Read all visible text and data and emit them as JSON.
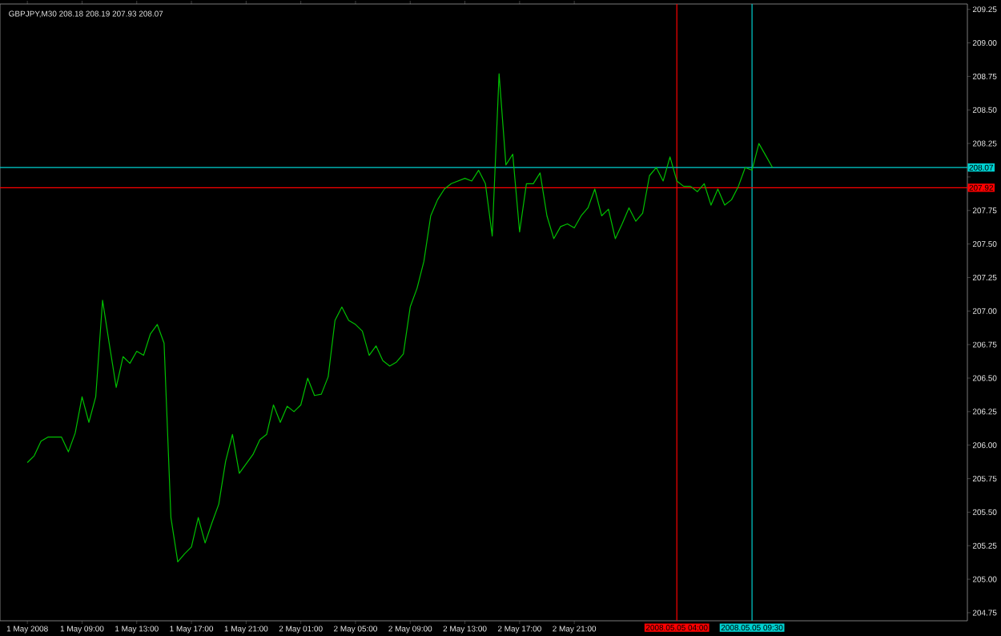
{
  "chart_data": {
    "type": "line",
    "title": "GBPJPY,M30  208.18 208.19 207.93 208.07",
    "color": "#00c000",
    "categories": [
      "1 May 2008",
      null,
      null,
      null,
      null,
      null,
      null,
      null,
      "1 May 09:00",
      null,
      null,
      null,
      null,
      null,
      null,
      null,
      "1 May 13:00",
      null,
      null,
      null,
      null,
      null,
      null,
      null,
      "1 May 17:00",
      null,
      null,
      null,
      null,
      null,
      null,
      null,
      "1 May 21:00",
      null,
      null,
      null,
      null,
      null,
      null,
      null,
      "2 May 01:00",
      null,
      null,
      null,
      null,
      null,
      null,
      null,
      "2 May 05:00",
      null,
      null,
      null,
      null,
      null,
      null,
      null,
      "2 May 09:00",
      null,
      null,
      null,
      null,
      null,
      null,
      null,
      "2 May 13:00",
      null,
      null,
      null,
      null,
      null,
      null,
      null,
      "2 May 17:00",
      null,
      null,
      null,
      null,
      null,
      null,
      null,
      "2 May 21:00",
      null,
      null,
      null,
      null,
      null,
      null,
      null,
      null,
      null,
      null,
      null,
      null,
      null,
      null,
      "2008.05.05 04:00",
      null,
      null,
      null,
      null,
      null,
      null,
      null,
      null,
      null,
      null,
      "2008.05.05 09:30",
      null,
      null,
      null,
      null,
      null,
      null,
      null,
      null,
      null,
      null,
      null,
      null,
      null,
      null,
      null,
      null,
      null,
      null,
      null,
      null,
      null,
      null,
      null,
      null,
      null,
      null,
      null,
      null,
      null,
      null,
      null
    ],
    "values": [
      205.87,
      205.92,
      206.03,
      206.06,
      206.06,
      206.06,
      205.95,
      206.09,
      206.36,
      206.17,
      206.36,
      207.08,
      206.75,
      206.43,
      206.66,
      206.61,
      206.7,
      206.67,
      206.83,
      206.9,
      206.76,
      205.46,
      205.13,
      205.19,
      205.24,
      205.46,
      205.27,
      205.42,
      205.56,
      205.88,
      206.08,
      205.79,
      205.86,
      205.93,
      206.04,
      206.08,
      206.3,
      206.17,
      206.29,
      206.25,
      206.3,
      206.5,
      206.37,
      206.38,
      206.51,
      206.93,
      207.03,
      206.93,
      206.9,
      206.85,
      206.67,
      206.74,
      206.63,
      206.59,
      206.62,
      206.68,
      207.03,
      207.17,
      207.37,
      207.71,
      207.83,
      207.91,
      207.95,
      207.97,
      207.99,
      207.97,
      208.05,
      207.95,
      207.56,
      208.77,
      208.09,
      208.17,
      207.59,
      207.95,
      207.95,
      208.03,
      207.71,
      207.54,
      207.63,
      207.65,
      207.62,
      207.71,
      207.77,
      207.91,
      207.71,
      207.76,
      207.54,
      207.65,
      207.77,
      207.67,
      207.73,
      208.01,
      208.07,
      207.97,
      208.15,
      207.97,
      207.93,
      207.93,
      207.89,
      207.95,
      207.79,
      207.91,
      207.79,
      207.83,
      207.93,
      208.07,
      208.05,
      208.25,
      208.16,
      208.07,
      null,
      null,
      null,
      null,
      null,
      null,
      null,
      null,
      null,
      null,
      null,
      null,
      null,
      null,
      null,
      null,
      null,
      null,
      null,
      null,
      null,
      null,
      null,
      null,
      null,
      null,
      null,
      null
    ],
    "ylim": [
      204.69,
      209.29
    ],
    "yticks": [
      204.75,
      {
        "value": 205,
        "label": "205.00"
      },
      205.25,
      {
        "value": 205.5,
        "label": "205.50"
      },
      205.75,
      {
        "value": 206,
        "label": "206.00"
      },
      206.25,
      {
        "value": 206.5,
        "label": "206.50"
      },
      206.75,
      {
        "value": 207,
        "label": "207.00"
      },
      207.25,
      {
        "value": 207.5,
        "label": "207.50"
      },
      207.75,
      {
        "value": 208,
        "label": null
      },
      208.25,
      {
        "value": 208.5,
        "label": "208.50"
      },
      208.75,
      {
        "value": 209,
        "label": "209.00"
      },
      209.25
    ],
    "ref_lines": [
      {
        "axis": "x",
        "value": "2008.05.05 04:00",
        "color": "#ff0000",
        "line_style": "solid"
      },
      {
        "axis": "x",
        "value": "2008.05.05 09:30",
        "color": "#00d0d0",
        "line_style": "solid"
      },
      {
        "axis": "y",
        "value": 208.07,
        "label": "208.07",
        "color": "#00d0d0",
        "line_style": "solid"
      },
      {
        "axis": "y",
        "value": 207.92,
        "label": "207.92",
        "color": "#ff0000",
        "line_style": "solid"
      }
    ]
  }
}
